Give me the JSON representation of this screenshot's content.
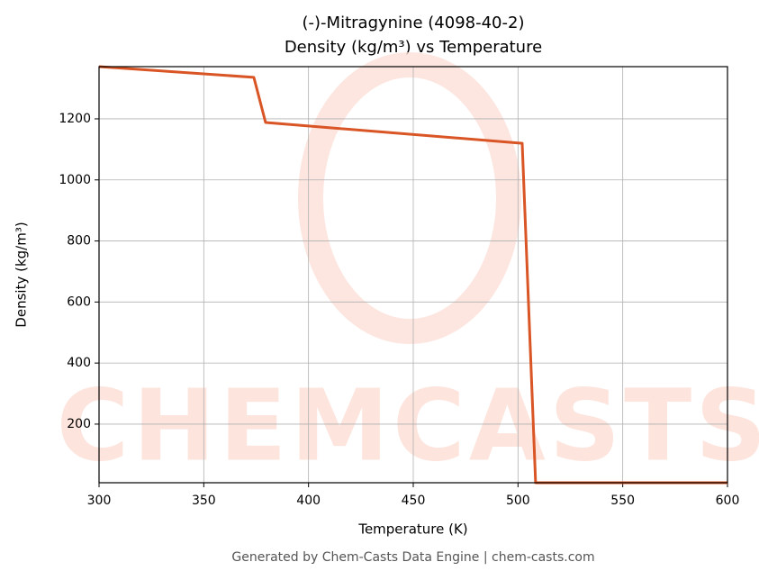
{
  "chart_data": {
    "type": "line",
    "title": "(-)-Mitragynine (4098-40-2)",
    "subtitle": "Density (kg/m³) vs Temperature",
    "x_label": "Temperature (K)",
    "y_label": "Density (kg/m³)",
    "footer": "Generated by Chem-Casts Data Engine | chem-casts.com",
    "watermark": "CHEMCASTS",
    "x": [
      300,
      373.9,
      379.5,
      502,
      508.4,
      600
    ],
    "series": [
      {
        "name": "Density",
        "color": "#d95525",
        "values": [
          1371,
          1336,
          1188,
          1120,
          8,
          8
        ]
      }
    ],
    "xlim": [
      300,
      600
    ],
    "xticks": [
      300,
      350,
      400,
      450,
      500,
      550,
      600
    ],
    "ylim": [
      8,
      1371
    ],
    "yticks": [
      200,
      400,
      600,
      800,
      1000,
      1200
    ],
    "grid": true
  }
}
